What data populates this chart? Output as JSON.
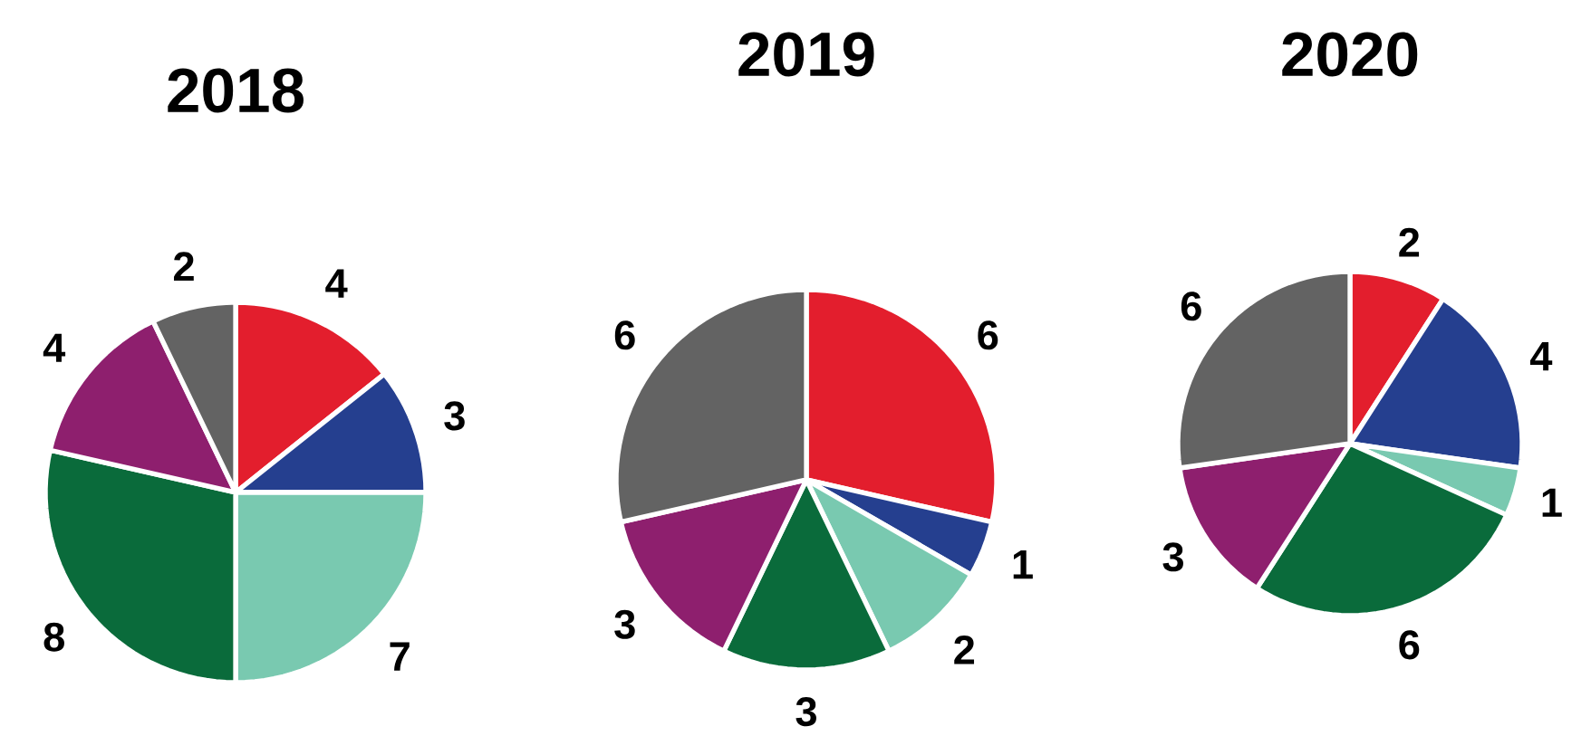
{
  "chart_data": [
    {
      "type": "pie",
      "title": "2018",
      "categories": [
        null,
        null,
        null,
        null,
        null,
        null
      ],
      "values": [
        4,
        3,
        7,
        8,
        4,
        2
      ],
      "colors": [
        "#e31e2d",
        "#253f8f",
        "#79c9b0",
        "#0a6b3b",
        "#8e1f6e",
        "#636363"
      ],
      "data_labels": true
    },
    {
      "type": "pie",
      "title": "2019",
      "categories": [
        null,
        null,
        null,
        null,
        null,
        null
      ],
      "values": [
        6,
        1,
        2,
        3,
        3,
        6
      ],
      "colors": [
        "#e31e2d",
        "#253f8f",
        "#79c9b0",
        "#0a6b3b",
        "#8e1f6e",
        "#636363"
      ],
      "data_labels": true
    },
    {
      "type": "pie",
      "title": "2020",
      "categories": [
        null,
        null,
        null,
        null,
        null,
        null
      ],
      "values": [
        2,
        4,
        1,
        6,
        3,
        6
      ],
      "colors": [
        "#e31e2d",
        "#253f8f",
        "#79c9b0",
        "#0a6b3b",
        "#8e1f6e",
        "#636363"
      ],
      "data_labels": true
    }
  ]
}
